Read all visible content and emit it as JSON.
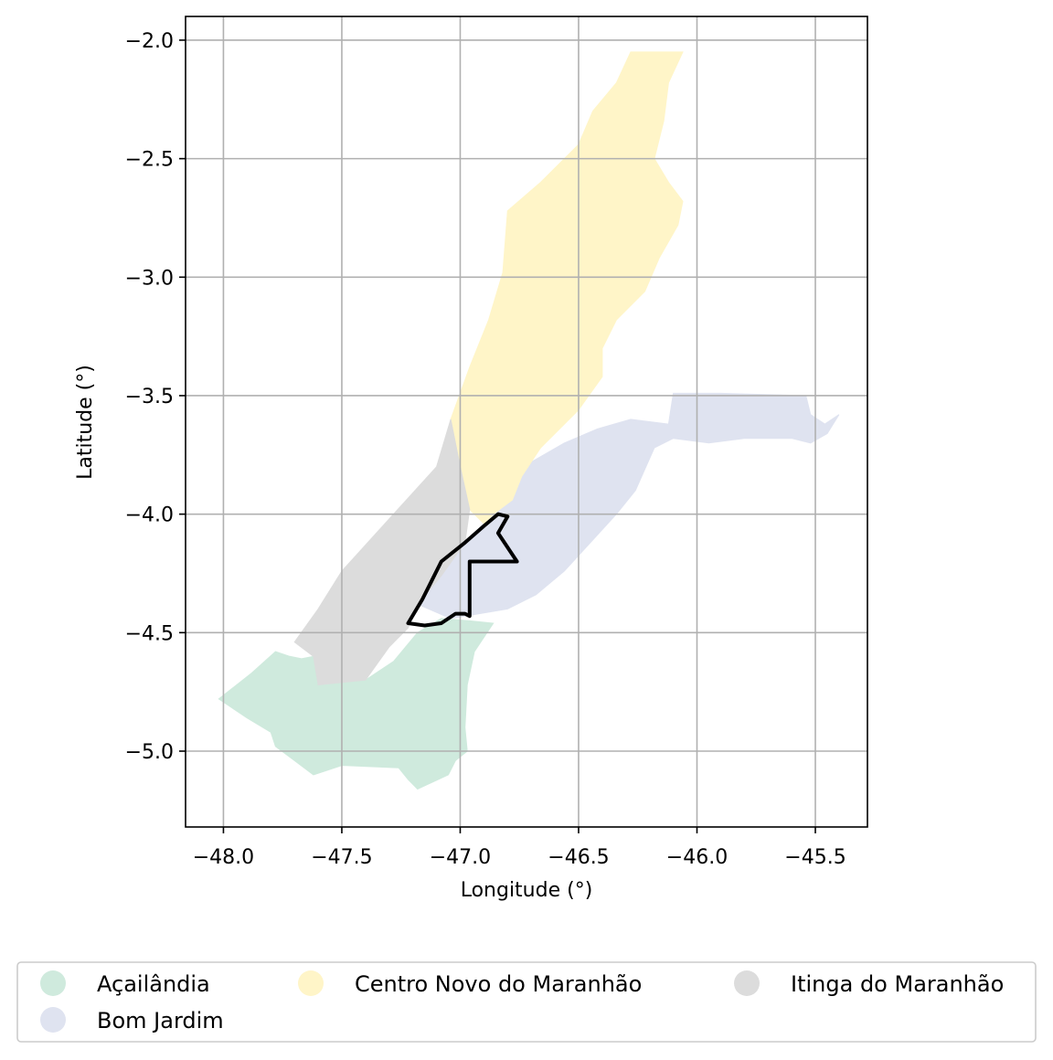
{
  "chart_data": {
    "type": "map",
    "xlabel": "Longitude (°)",
    "ylabel": "Latitude (°)",
    "xlim": [
      -48.16,
      -45.28
    ],
    "ylim": [
      -5.32,
      -1.9
    ],
    "x_ticks": [
      -48.0,
      -47.5,
      -47.0,
      -46.5,
      -46.0,
      -45.5
    ],
    "x_tick_labels": [
      "−48.0",
      "−47.5",
      "−47.0",
      "−46.5",
      "−46.0",
      "−45.5"
    ],
    "y_ticks": [
      -2.0,
      -2.5,
      -3.0,
      -3.5,
      -4.0,
      -4.5,
      -5.0
    ],
    "y_tick_labels": [
      "−2.0",
      "−2.5",
      "−3.0",
      "−3.5",
      "−4.0",
      "−4.5",
      "−5.0"
    ],
    "grid": true,
    "legend_position": "bottom",
    "regions": [
      {
        "name": "Açailândia",
        "color": "#cfeadd",
        "coords": [
          [
            -48.02,
            -4.78
          ],
          [
            -47.88,
            -4.67
          ],
          [
            -47.78,
            -4.58
          ],
          [
            -47.72,
            -4.6
          ],
          [
            -47.67,
            -4.61
          ],
          [
            -47.62,
            -4.6
          ],
          [
            -47.6,
            -4.72
          ],
          [
            -47.4,
            -4.7
          ],
          [
            -47.28,
            -4.62
          ],
          [
            -47.18,
            -4.5
          ],
          [
            -47.08,
            -4.44
          ],
          [
            -46.96,
            -4.45
          ],
          [
            -46.86,
            -4.46
          ],
          [
            -46.94,
            -4.58
          ],
          [
            -46.97,
            -4.72
          ],
          [
            -46.98,
            -4.9
          ],
          [
            -46.97,
            -5.0
          ],
          [
            -47.02,
            -5.04
          ],
          [
            -47.05,
            -5.1
          ],
          [
            -47.18,
            -5.16
          ],
          [
            -47.22,
            -5.12
          ],
          [
            -47.26,
            -5.07
          ],
          [
            -47.5,
            -5.06
          ],
          [
            -47.62,
            -5.1
          ],
          [
            -47.7,
            -5.04
          ],
          [
            -47.78,
            -4.98
          ],
          [
            -47.8,
            -4.92
          ],
          [
            -47.9,
            -4.86
          ],
          [
            -48.02,
            -4.78
          ]
        ]
      },
      {
        "name": "Bom Jardim",
        "color": "#dfe3f0",
        "coords": [
          [
            -47.18,
            -4.38
          ],
          [
            -47.08,
            -4.26
          ],
          [
            -46.98,
            -4.12
          ],
          [
            -46.9,
            -4.04
          ],
          [
            -46.86,
            -4.0
          ],
          [
            -46.78,
            -3.94
          ],
          [
            -46.74,
            -3.84
          ],
          [
            -46.7,
            -3.78
          ],
          [
            -46.56,
            -3.7
          ],
          [
            -46.42,
            -3.64
          ],
          [
            -46.28,
            -3.6
          ],
          [
            -46.12,
            -3.62
          ],
          [
            -46.1,
            -3.49
          ],
          [
            -45.9,
            -3.49
          ],
          [
            -45.54,
            -3.5
          ],
          [
            -45.52,
            -3.58
          ],
          [
            -45.46,
            -3.62
          ],
          [
            -45.4,
            -3.58
          ],
          [
            -45.45,
            -3.66
          ],
          [
            -45.52,
            -3.7
          ],
          [
            -45.6,
            -3.68
          ],
          [
            -45.8,
            -3.68
          ],
          [
            -45.95,
            -3.7
          ],
          [
            -46.1,
            -3.68
          ],
          [
            -46.18,
            -3.72
          ],
          [
            -46.26,
            -3.9
          ],
          [
            -46.34,
            -4.0
          ],
          [
            -46.45,
            -4.12
          ],
          [
            -46.56,
            -4.24
          ],
          [
            -46.68,
            -4.34
          ],
          [
            -46.8,
            -4.4
          ],
          [
            -46.92,
            -4.42
          ],
          [
            -47.04,
            -4.44
          ],
          [
            -47.18,
            -4.38
          ]
        ]
      },
      {
        "name": "Centro Novo do Maranhão",
        "color": "#fff5c8",
        "coords": [
          [
            -46.28,
            -2.05
          ],
          [
            -46.06,
            -2.05
          ],
          [
            -46.12,
            -2.18
          ],
          [
            -46.14,
            -2.34
          ],
          [
            -46.18,
            -2.5
          ],
          [
            -46.12,
            -2.6
          ],
          [
            -46.06,
            -2.68
          ],
          [
            -46.08,
            -2.78
          ],
          [
            -46.16,
            -2.92
          ],
          [
            -46.22,
            -3.06
          ],
          [
            -46.34,
            -3.18
          ],
          [
            -46.4,
            -3.3
          ],
          [
            -46.4,
            -3.42
          ],
          [
            -46.5,
            -3.56
          ],
          [
            -46.66,
            -3.72
          ],
          [
            -46.74,
            -3.84
          ],
          [
            -46.78,
            -3.94
          ],
          [
            -46.86,
            -4.0
          ],
          [
            -46.9,
            -4.04
          ],
          [
            -46.96,
            -3.98
          ],
          [
            -47.0,
            -3.8
          ],
          [
            -47.04,
            -3.6
          ],
          [
            -46.96,
            -3.38
          ],
          [
            -46.88,
            -3.18
          ],
          [
            -46.82,
            -2.98
          ],
          [
            -46.8,
            -2.72
          ],
          [
            -46.66,
            -2.6
          ],
          [
            -46.5,
            -2.44
          ],
          [
            -46.44,
            -2.3
          ],
          [
            -46.34,
            -2.18
          ],
          [
            -46.28,
            -2.05
          ]
        ]
      },
      {
        "name": "Itinga do Maranhão",
        "color": "#dcdcdc",
        "coords": [
          [
            -47.04,
            -3.6
          ],
          [
            -47.0,
            -3.8
          ],
          [
            -46.96,
            -3.98
          ],
          [
            -46.98,
            -4.12
          ],
          [
            -47.08,
            -4.26
          ],
          [
            -47.18,
            -4.38
          ],
          [
            -47.22,
            -4.48
          ],
          [
            -47.3,
            -4.56
          ],
          [
            -47.4,
            -4.7
          ],
          [
            -47.6,
            -4.72
          ],
          [
            -47.62,
            -4.6
          ],
          [
            -47.7,
            -4.54
          ],
          [
            -47.6,
            -4.4
          ],
          [
            -47.5,
            -4.24
          ],
          [
            -47.3,
            -4.02
          ],
          [
            -47.1,
            -3.8
          ],
          [
            -47.04,
            -3.6
          ]
        ]
      }
    ],
    "outline": {
      "color": "#000000",
      "coords": [
        [
          -46.84,
          -4.0
        ],
        [
          -46.9,
          -4.05
        ],
        [
          -46.98,
          -4.12
        ],
        [
          -47.08,
          -4.2
        ],
        [
          -47.12,
          -4.28
        ],
        [
          -47.16,
          -4.36
        ],
        [
          -47.22,
          -4.46
        ],
        [
          -47.15,
          -4.47
        ],
        [
          -47.08,
          -4.46
        ],
        [
          -47.02,
          -4.42
        ],
        [
          -46.98,
          -4.42
        ],
        [
          -46.96,
          -4.43
        ],
        [
          -46.96,
          -4.2
        ],
        [
          -46.76,
          -4.2
        ],
        [
          -46.84,
          -4.08
        ],
        [
          -46.8,
          -4.01
        ],
        [
          -46.84,
          -4.0
        ]
      ]
    }
  }
}
